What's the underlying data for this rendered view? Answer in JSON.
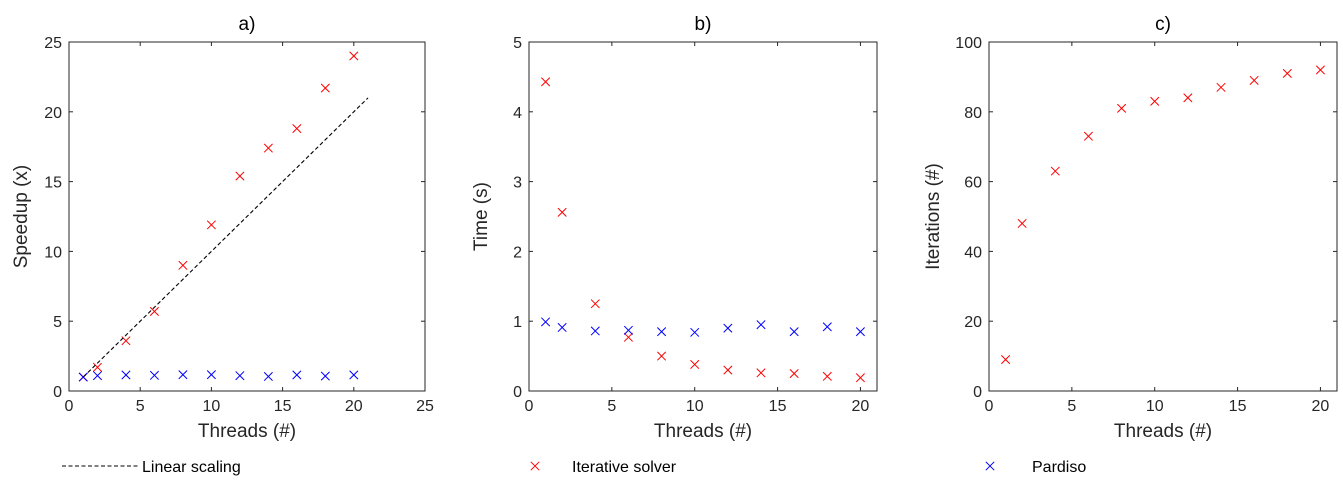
{
  "chart_data": [
    {
      "type": "scatter",
      "title": "a)",
      "xlabel": "Threads (#)",
      "ylabel": "Speedup (x)",
      "xlim": [
        0,
        25
      ],
      "ylim": [
        0,
        25
      ],
      "xticks": [
        0,
        5,
        10,
        15,
        20,
        25
      ],
      "yticks": [
        0,
        5,
        10,
        15,
        20,
        25
      ],
      "grid": false,
      "series": [
        {
          "name": "Iterative solver",
          "marker": "x",
          "color": "#ff0000",
          "x": [
            1,
            2,
            4,
            6,
            8,
            10,
            12,
            14,
            16,
            18,
            20
          ],
          "y": [
            1.0,
            1.7,
            3.6,
            5.7,
            9.0,
            11.9,
            15.4,
            17.4,
            18.8,
            21.7,
            24.0
          ]
        },
        {
          "name": "Pardiso",
          "marker": "x",
          "color": "#0000ff",
          "x": [
            1,
            2,
            4,
            6,
            8,
            10,
            12,
            14,
            16,
            18,
            20
          ],
          "y": [
            1.0,
            1.1,
            1.15,
            1.12,
            1.17,
            1.17,
            1.1,
            1.04,
            1.15,
            1.07,
            1.15
          ]
        },
        {
          "name": "Linear scaling",
          "marker": "dashed-line",
          "color": "#000000",
          "x": [
            1,
            21
          ],
          "y": [
            1,
            21
          ]
        }
      ]
    },
    {
      "type": "scatter",
      "title": "b)",
      "xlabel": "Threads (#)",
      "ylabel": "Time (s)",
      "xlim": [
        0,
        21
      ],
      "ylim": [
        0,
        5
      ],
      "xticks": [
        0,
        5,
        10,
        15,
        20
      ],
      "yticks": [
        0,
        1,
        2,
        3,
        4,
        5
      ],
      "grid": false,
      "series": [
        {
          "name": "Iterative solver",
          "marker": "x",
          "color": "#ff0000",
          "x": [
            1,
            2,
            4,
            6,
            8,
            10,
            12,
            14,
            16,
            18,
            20
          ],
          "y": [
            4.43,
            2.56,
            1.25,
            0.77,
            0.5,
            0.38,
            0.3,
            0.26,
            0.25,
            0.21,
            0.19
          ]
        },
        {
          "name": "Pardiso",
          "marker": "x",
          "color": "#0000ff",
          "x": [
            1,
            2,
            4,
            6,
            8,
            10,
            12,
            14,
            16,
            18,
            20
          ],
          "y": [
            0.99,
            0.91,
            0.86,
            0.87,
            0.85,
            0.84,
            0.9,
            0.95,
            0.85,
            0.92,
            0.85
          ]
        }
      ]
    },
    {
      "type": "scatter",
      "title": "c)",
      "xlabel": "Threads (#)",
      "ylabel": "Iterations (#)",
      "xlim": [
        0,
        21
      ],
      "ylim": [
        0,
        100
      ],
      "xticks": [
        0,
        5,
        10,
        15,
        20
      ],
      "yticks": [
        0,
        20,
        40,
        60,
        80,
        100
      ],
      "grid": false,
      "series": [
        {
          "name": "Iterative solver",
          "marker": "x",
          "color": "#ff0000",
          "x": [
            1,
            2,
            4,
            6,
            8,
            10,
            12,
            14,
            16,
            18,
            20
          ],
          "y": [
            9,
            48,
            63,
            73,
            81,
            83,
            84,
            87,
            89,
            91,
            92
          ]
        }
      ]
    }
  ],
  "legend": {
    "placement": "bottom",
    "entries": [
      {
        "label": "Linear scaling",
        "marker": "dashed-line",
        "color": "#000000"
      },
      {
        "label": "Iterative solver",
        "marker": "x",
        "color": "#ff0000"
      },
      {
        "label": "Pardiso",
        "marker": "x",
        "color": "#0000ff"
      }
    ]
  }
}
